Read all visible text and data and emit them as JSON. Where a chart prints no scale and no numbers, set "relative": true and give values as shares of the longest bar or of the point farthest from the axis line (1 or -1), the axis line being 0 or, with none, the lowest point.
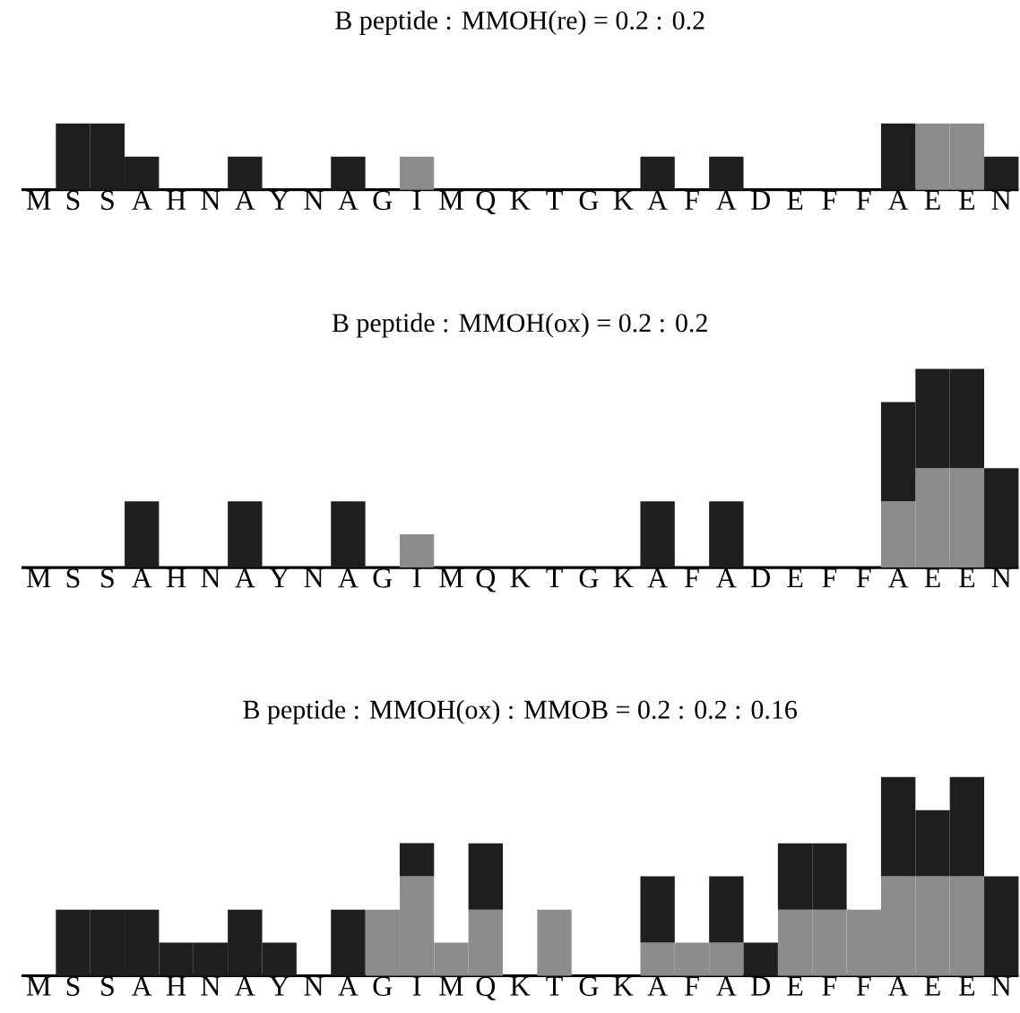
{
  "chart_data": [
    {
      "type": "bar",
      "title": "B peptide : MMOH(re) = 0.2 : 0.2",
      "stacked": true,
      "relative": true,
      "categories": [
        "M",
        "S",
        "S",
        "A",
        "H",
        "N",
        "A",
        "Y",
        "N",
        "A",
        "G",
        "I",
        "M",
        "Q",
        "K",
        "T",
        "G",
        "K",
        "A",
        "F",
        "A",
        "D",
        "E",
        "F",
        "F",
        "A",
        "E",
        "E",
        "N"
      ],
      "series": [
        {
          "color": "#8c8c8c",
          "values": [
            0,
            0,
            0,
            0,
            0,
            0,
            0,
            0,
            0,
            0,
            0,
            0.5,
            0,
            0,
            0,
            0,
            0,
            0,
            0,
            0,
            0,
            0,
            0,
            0,
            0,
            0,
            1,
            1,
            0
          ]
        },
        {
          "color": "#1e1e1e",
          "values": [
            0,
            1,
            1,
            0.5,
            0,
            0,
            0.5,
            0,
            0,
            0.5,
            0,
            0,
            0,
            0,
            0,
            0,
            0,
            0,
            0.5,
            0,
            0.5,
            0,
            0,
            0,
            0,
            1,
            0,
            0,
            0.5
          ]
        }
      ]
    },
    {
      "type": "bar",
      "title": "B peptide : MMOH(ox) = 0.2 : 0.2",
      "stacked": true,
      "relative": true,
      "categories": [
        "M",
        "S",
        "S",
        "A",
        "H",
        "N",
        "A",
        "Y",
        "N",
        "A",
        "G",
        "I",
        "M",
        "Q",
        "K",
        "T",
        "G",
        "K",
        "A",
        "F",
        "A",
        "D",
        "E",
        "F",
        "F",
        "A",
        "E",
        "E",
        "N"
      ],
      "series": [
        {
          "color": "#8c8c8c",
          "values": [
            0,
            0,
            0,
            0,
            0,
            0,
            0,
            0,
            0,
            0,
            0,
            0.167,
            0,
            0,
            0,
            0,
            0,
            0,
            0,
            0,
            0,
            0,
            0,
            0,
            0,
            0.333,
            0.5,
            0.5,
            0
          ]
        },
        {
          "color": "#1e1e1e",
          "values": [
            0,
            0,
            0,
            0.333,
            0,
            0,
            0.333,
            0,
            0,
            0.333,
            0,
            0,
            0,
            0,
            0,
            0,
            0,
            0,
            0.333,
            0,
            0.333,
            0,
            0,
            0,
            0,
            0.5,
            0.5,
            0.5,
            0.5
          ]
        }
      ]
    },
    {
      "type": "bar",
      "title": "B peptide : MMOH(ox) : MMOB = 0.2 : 0.2 : 0.16",
      "stacked": true,
      "relative": true,
      "categories": [
        "M",
        "S",
        "S",
        "A",
        "H",
        "N",
        "A",
        "Y",
        "N",
        "A",
        "G",
        "I",
        "M",
        "Q",
        "K",
        "T",
        "G",
        "K",
        "A",
        "F",
        "A",
        "D",
        "E",
        "F",
        "F",
        "A",
        "E",
        "E",
        "N"
      ],
      "series": [
        {
          "color": "#8c8c8c",
          "values": [
            0,
            0,
            0,
            0,
            0,
            0,
            0,
            0,
            0,
            0,
            0.333,
            0.5,
            0.167,
            0.333,
            0,
            0.333,
            0,
            0,
            0.167,
            0.167,
            0.167,
            0,
            0.333,
            0.333,
            0.333,
            0.5,
            0.5,
            0.5,
            0
          ]
        },
        {
          "color": "#1e1e1e",
          "values": [
            0,
            0.333,
            0.333,
            0.333,
            0.167,
            0.167,
            0.333,
            0.167,
            0,
            0.333,
            0,
            0.167,
            0,
            0.333,
            0,
            0,
            0,
            0,
            0.333,
            0,
            0.333,
            0.167,
            0.333,
            0.333,
            0,
            0.5,
            0.333,
            0.5,
            0.5
          ]
        }
      ]
    }
  ]
}
